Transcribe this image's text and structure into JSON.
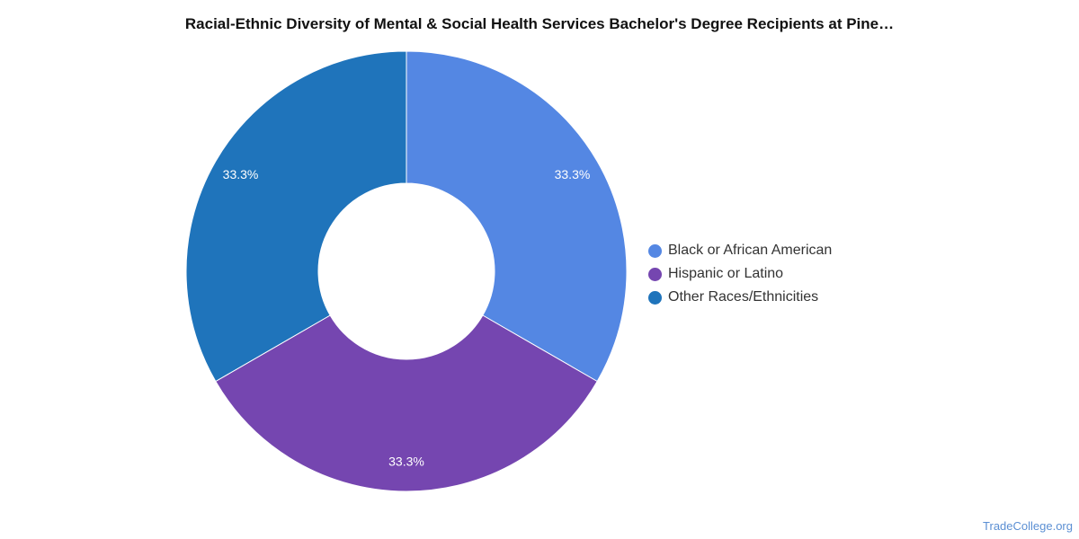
{
  "chart_data": {
    "type": "pie",
    "title": "Racial-Ethnic Diversity of Mental & Social Health Services Bachelor's Degree Recipients at Pine…",
    "categories": [
      "Black or African American",
      "Hispanic or Latino",
      "Other Races/Ethnicities"
    ],
    "values": [
      33.3,
      33.3,
      33.3
    ],
    "labels": [
      "33.3%",
      "33.3%",
      "33.3%"
    ],
    "colors": [
      "#5487e3",
      "#7546b0",
      "#1f74bb"
    ],
    "donut": true,
    "legend_position": "right"
  },
  "source": "TradeCollege.org"
}
